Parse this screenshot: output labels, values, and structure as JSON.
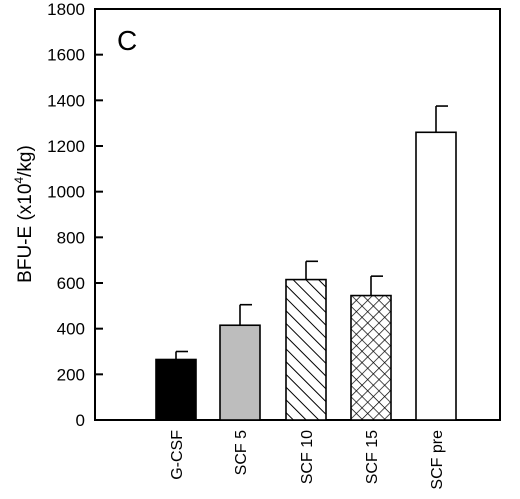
{
  "chart_data": {
    "type": "bar",
    "panel_label": "C",
    "ylabel": "BFU-E (x10",
    "ylabel_sup": "4",
    "ylabel_tail": "/kg)",
    "xlabel": "",
    "ylim": [
      0,
      1800
    ],
    "yticks": [
      0,
      200,
      400,
      600,
      800,
      1000,
      1200,
      1400,
      1600,
      1800
    ],
    "categories": [
      "G-CSF",
      "SCF 5",
      "SCF 10",
      "SCF 15",
      "SCF pre"
    ],
    "values": [
      265,
      415,
      615,
      545,
      1260
    ],
    "errors": [
      35,
      90,
      80,
      85,
      115
    ],
    "fills": [
      "solid-black",
      "solid-gray",
      "diagonal-hatch",
      "crosshatch",
      "white"
    ],
    "colors": {
      "black": "#000000",
      "gray": "#bdbdbd",
      "white": "#ffffff"
    },
    "grid": false
  }
}
